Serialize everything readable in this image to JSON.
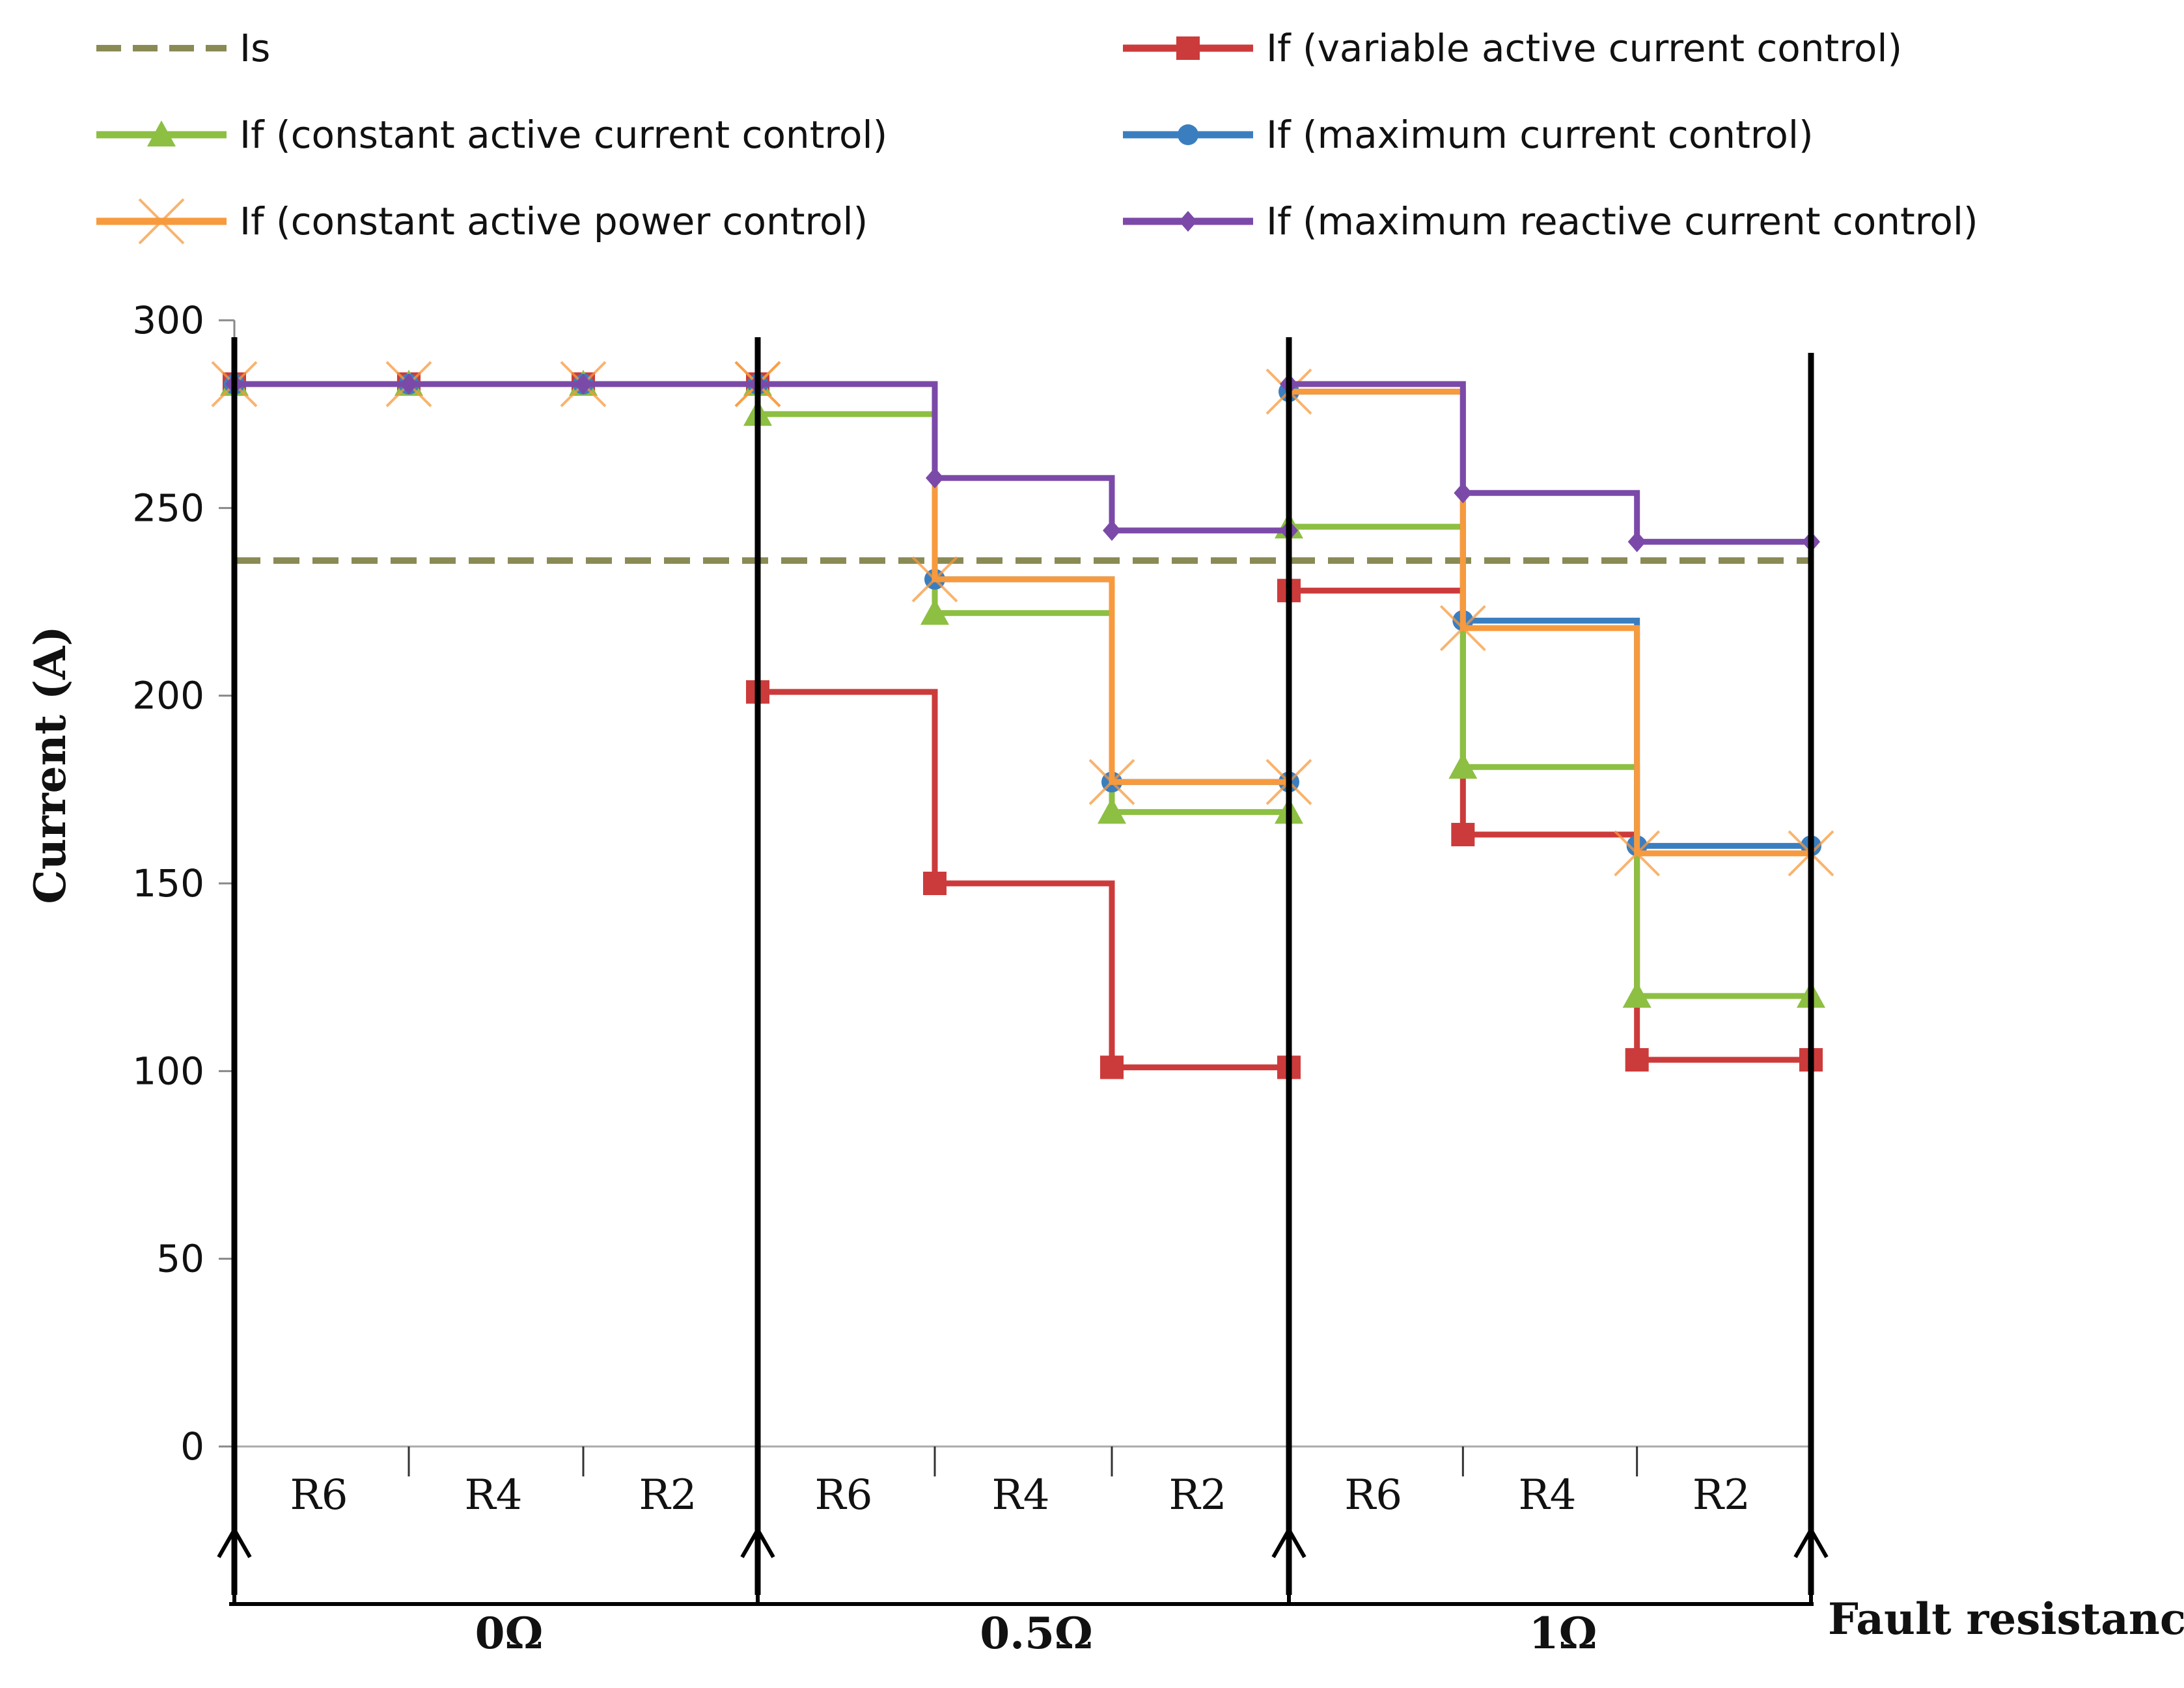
{
  "chart_data": {
    "type": "line",
    "title": "",
    "ylabel": "Current (A)",
    "xlabel": "Fault resistance",
    "ylim": [
      0,
      300
    ],
    "yticks": [
      0,
      50,
      100,
      150,
      200,
      250,
      300
    ],
    "groups": [
      "0Ω",
      "0.5Ω",
      "1Ω"
    ],
    "categories": [
      "R6",
      "R4",
      "R2",
      "R6",
      "R4",
      "R2",
      "R6",
      "R4",
      "R2"
    ],
    "threshold": {
      "name": "Is",
      "value": 236,
      "color": "#8a8a55"
    },
    "series": [
      {
        "name": "If (variable active current control)",
        "color": "#cc3b3b",
        "marker": "square",
        "values": [
          283,
          283,
          283,
          201,
          150,
          101,
          228,
          163,
          103
        ]
      },
      {
        "name": "If (constant active current control)",
        "color": "#8dbf42",
        "marker": "triangle",
        "values": [
          283,
          283,
          283,
          275,
          222,
          169,
          245,
          181,
          120
        ]
      },
      {
        "name": "If (maximum current control)",
        "color": "#3a7ec0",
        "marker": "circle",
        "values": [
          283,
          283,
          283,
          283,
          231,
          177,
          281,
          220,
          160
        ]
      },
      {
        "name": "If (constant active power control)",
        "color": "#f79a3e",
        "marker": "x",
        "values": [
          283,
          283,
          283,
          283,
          231,
          177,
          281,
          218,
          158
        ]
      },
      {
        "name": "If (maximum reactive current control)",
        "color": "#7b4aa8",
        "marker": "diamond",
        "values": [
          283,
          283,
          283,
          283,
          258,
          244,
          283,
          254,
          241
        ]
      }
    ]
  }
}
